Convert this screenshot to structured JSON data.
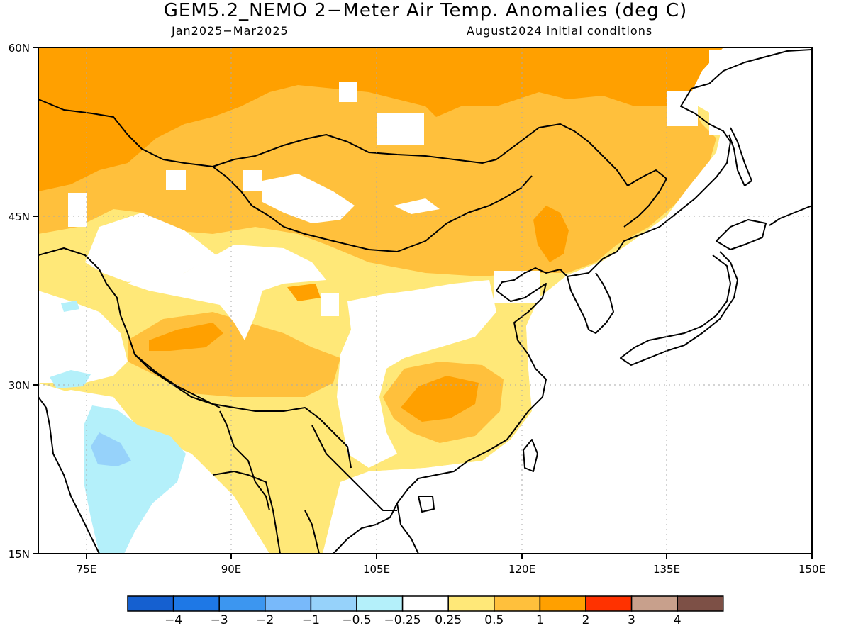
{
  "title": "GEM5.2_NEMO 2−Meter Air Temp. Anomalies (deg C)",
  "subtitle_left": "Jan2025−Mar2025",
  "subtitle_right": "August2024 initial conditions",
  "map": {
    "lon_range": [
      70,
      150
    ],
    "lat_range": [
      15,
      60
    ],
    "lat_ticks": [
      "15N",
      "30N",
      "45N",
      "60N"
    ],
    "lon_ticks": [
      "75E",
      "90E",
      "105E",
      "120E",
      "135E",
      "150E"
    ],
    "gridlines": "dotted"
  },
  "colorbar": {
    "labels": [
      "−4",
      "−3",
      "−2",
      "−1",
      "−0.5",
      "−0.25",
      "0.25",
      "0.5",
      "1",
      "2",
      "3",
      "4"
    ],
    "colors": [
      "#1560d0",
      "#1e78e6",
      "#3c96f0",
      "#78b9fa",
      "#96d2fa",
      "#b4f0fa",
      "#ffffff",
      "#ffe878",
      "#ffc03c",
      "#ffa000",
      "#ff3200",
      "#c8a08c",
      "#7d5046"
    ]
  },
  "legend_colors": {
    "warm_light": "#ffe878",
    "warm_mid": "#ffc03c",
    "warm_strong": "#ffa000",
    "cool_light": "#b4f0fa",
    "cool_mid": "#96d2fa",
    "cool_strong": "#78b9fa"
  }
}
